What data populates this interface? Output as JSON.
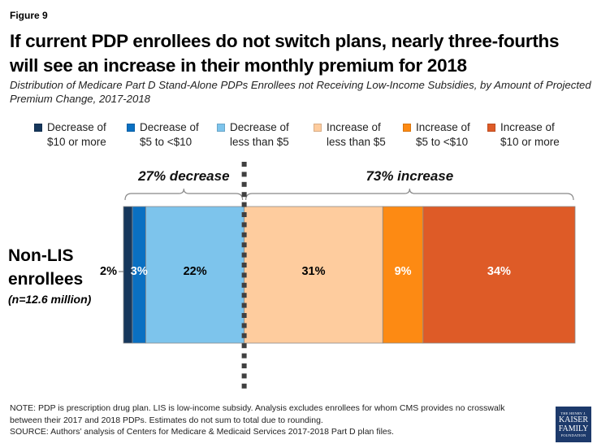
{
  "figure_label": "Figure 9",
  "title": "If current PDP enrollees do not switch plans, nearly three-fourths will see an increase in their monthly premium for 2018",
  "subtitle": "Distribution of Medicare Part D Stand-Alone PDPs Enrollees not Receiving Low-Income Subsidies, by Amount of Projected Premium Change, 2017-2018",
  "category": {
    "main": "Non-LIS enrollees",
    "main_line1": "Non-LIS",
    "main_line2": "enrollees",
    "sub": "(n=12.6 million)"
  },
  "annotations": {
    "decrease_label": "27% decrease",
    "increase_label": "73% increase"
  },
  "chart_data": {
    "type": "bar",
    "orientation": "horizontal-stacked-100",
    "title": "If current PDP enrollees do not switch plans, nearly three-fourths will see an increase in their monthly premium for 2018",
    "subtitle": "Distribution of Medicare Part D Stand-Alone PDPs Enrollees not Receiving Low-Income Subsidies, by Amount of Projected Premium Change, 2017-2018",
    "categories": [
      "Non-LIS enrollees (n=12.6 million)"
    ],
    "legend_position": "top",
    "xlim": [
      0,
      100
    ],
    "grid": false,
    "series": [
      {
        "name": "Decrease of $10 or more",
        "line1": "Decrease of",
        "line2": "$10 or more",
        "values": [
          2
        ],
        "label": "2%",
        "color": "#16375c",
        "label_color": "#000000",
        "label_outside": true
      },
      {
        "name": "Decrease of $5 to <$10",
        "line1": "Decrease of",
        "line2": "$5 to <$10",
        "values": [
          3
        ],
        "label": "3%",
        "color": "#0a70c2",
        "label_color": "#ffffff",
        "label_outside": false
      },
      {
        "name": "Decrease of less than $5",
        "line1": "Decrease of",
        "line2": "less than $5",
        "values": [
          22
        ],
        "label": "22%",
        "color": "#7dc4ec",
        "label_color": "#000000",
        "label_outside": false
      },
      {
        "name": "Increase of less than $5",
        "line1": "Increase of",
        "line2": "less than $5",
        "values": [
          31
        ],
        "label": "31%",
        "color": "#fecc9e",
        "label_color": "#000000",
        "label_outside": false
      },
      {
        "name": "Increase of $5 to <$10",
        "line1": "Increase of",
        "line2": "$5 to <$10",
        "values": [
          9
        ],
        "label": "9%",
        "color": "#fd8a13",
        "label_color": "#ffffff",
        "label_outside": false
      },
      {
        "name": "Increase of $10 or more",
        "line1": "Increase of",
        "line2": "$10 or more",
        "values": [
          34
        ],
        "label": "34%",
        "color": "#de5b27",
        "label_color": "#ffffff",
        "label_outside": false
      }
    ],
    "annotations": [
      {
        "text": "27% decrease",
        "spans_series": [
          0,
          1,
          2
        ],
        "total": 27
      },
      {
        "text": "73% increase",
        "spans_series": [
          3,
          4,
          5
        ],
        "total": 73
      }
    ],
    "divider": "dotted vertical line between decrease and increase"
  },
  "notes": {
    "line1": "NOTE: PDP is prescription drug plan. LIS is low-income subsidy. Analysis excludes enrollees for whom CMS provides no crosswalk",
    "line2": "between their 2017 and 2018 PDPs. Estimates do not sum to total due to rounding.",
    "line3": "SOURCE: Authors’ analysis of Centers for Medicare & Medicaid Services 2017-2018 Part D plan files."
  },
  "logo": {
    "line1": "THE HENRY J.",
    "line2": "KAISER",
    "line3": "FAMILY",
    "line4": "FOUNDATION"
  }
}
